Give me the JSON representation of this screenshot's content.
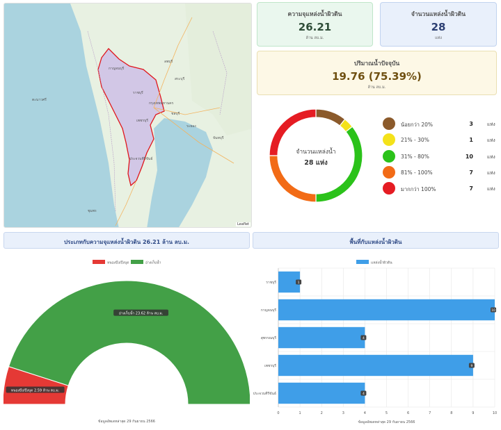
{
  "map": {
    "attribution": "Leaflet",
    "place_labels": [
      "ตะนาวศรี",
      "ชุมพร",
      "กาญจนบุรี",
      "ราชบุรี",
      "เพชรบุรี",
      "ประจวบคีรีขันธ์",
      "กรุงเทพมหานคร",
      "จันทบุรี",
      "ระยอง",
      "ชลบุรี",
      "สระบุรี",
      "ลพบุรี"
    ]
  },
  "cards": {
    "capacity": {
      "label": "ความจุแหล่งน้ำผิวดิน",
      "value": "26.21",
      "unit": "ล้าน ลบ.ม."
    },
    "count": {
      "label": "จำนวนแหล่งน้ำผิวดิน",
      "value": "28",
      "unit": "แห่ง"
    },
    "current": {
      "label": "ปริมาณน้ำปัจจุบัน",
      "value": "19.76 (75.39%)",
      "unit": "ล้าน ลบ.ม."
    }
  },
  "donut": {
    "center_label": "จำนวนแหล่งน้ำ",
    "center_value": "28 แห่ง",
    "legend": [
      {
        "label": "น้อยกว่า 20%",
        "count": "3",
        "unit": "แห่ง",
        "color": "#8b5a2b"
      },
      {
        "label": "21% - 30%",
        "count": "1",
        "unit": "แห่ง",
        "color": "#f4e21a"
      },
      {
        "label": "31% - 80%",
        "count": "10",
        "unit": "แห่ง",
        "color": "#2bc21a"
      },
      {
        "label": "81% - 100%",
        "count": "7",
        "unit": "แห่ง",
        "color": "#f26b16"
      },
      {
        "label": "มากกว่า 100%",
        "count": "7",
        "unit": "แห่ง",
        "color": "#e51c23"
      }
    ]
  },
  "section_left": {
    "title": "ประเภทกับความจุแหล่งน้ำผิวดิน 26.21 ล้าน ลบ.ม."
  },
  "section_right": {
    "title": "พื้นที่กับแหล่งน้ำผิวดิน"
  },
  "chart_data": [
    {
      "type": "pie",
      "title": "",
      "legend": [
        "หนองบึง/บึงบุด",
        "อ่างเก็บน้ำ"
      ],
      "colors": [
        "#e53935",
        "#43a047"
      ],
      "values": [
        2.59,
        23.62
      ],
      "slice_labels": [
        "หนองบึง/บึงบุด 2.59 ล้าน ลบ.ม.",
        "อ่างเก็บน้ำ 23.62 ล้าน ลบ.ม."
      ],
      "footer": "ข้อมูลอัพเดทล่าสุด 29 กันยายน 2566"
    },
    {
      "type": "bar",
      "orientation": "horizontal",
      "legend": "แหล่งน้ำผิวดิน",
      "color": "#3f9ee8",
      "categories": [
        "ราชบุรี",
        "กาญจนบุรี",
        "สุพรรณบุรี",
        "เพชรบุรี",
        "ประจวบคีรีขันธ์"
      ],
      "values": [
        1,
        10,
        4,
        9,
        4
      ],
      "xlim": [
        0,
        10
      ],
      "xticks": [
        "0",
        "1",
        "2",
        "3",
        "4",
        "5",
        "6",
        "7",
        "8",
        "9",
        "10"
      ],
      "footer": "ข้อมูลอัพเดทล่าสุด 29 กันยายน 2566"
    }
  ]
}
